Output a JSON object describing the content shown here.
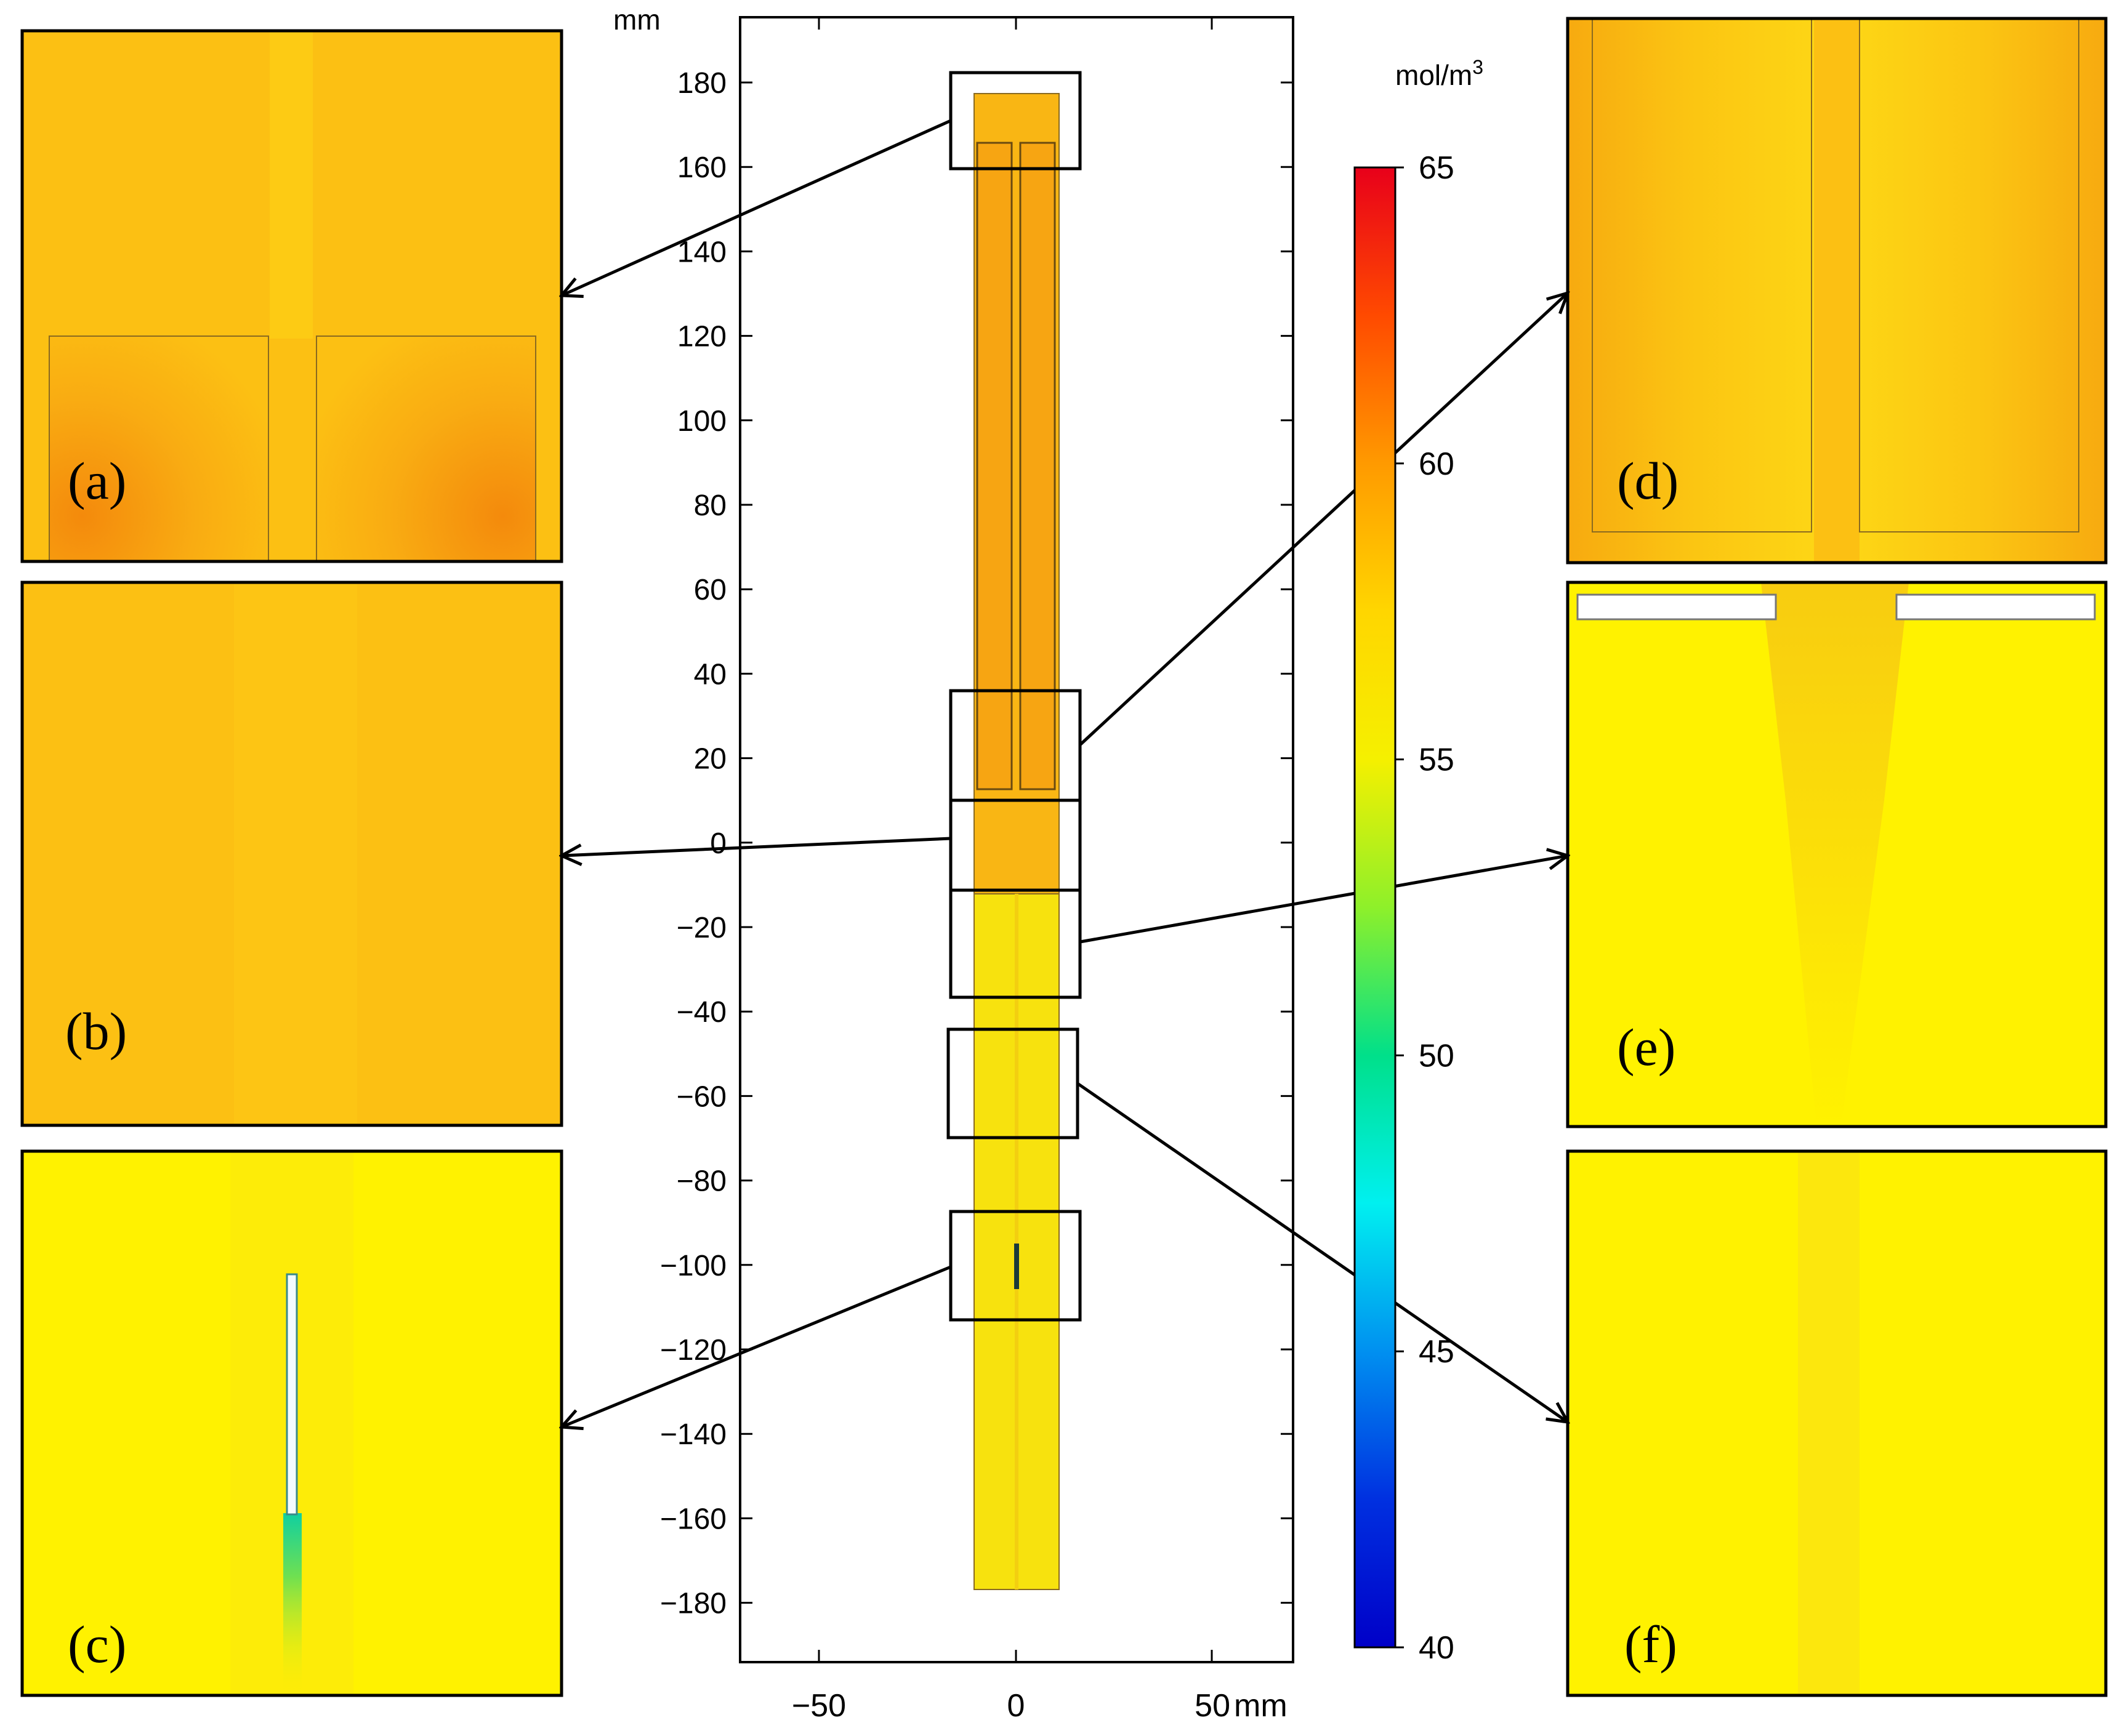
{
  "axis": {
    "y_unit": "mm",
    "x_unit": "mm",
    "y_ticks": [
      "180",
      "160",
      "140",
      "120",
      "100",
      "80",
      "60",
      "40",
      "20",
      "0",
      "−20",
      "−40",
      "−60",
      "−80",
      "−100",
      "−120",
      "−140",
      "−160",
      "−180"
    ],
    "x_ticks": [
      "−50",
      "0",
      "50"
    ]
  },
  "colorbar": {
    "unit_prefix": "mol/m",
    "unit_exponent": "3",
    "ticks": [
      "65",
      "60",
      "55",
      "50",
      "45",
      "40"
    ],
    "colors": [
      "#e8001a",
      "#ff4a00",
      "#ff9a00",
      "#ffd600",
      "#f5f000",
      "#8ef02a",
      "#00e08a",
      "#00f0f0",
      "#0090f0",
      "#0030e0",
      "#0000c8"
    ]
  },
  "panels": {
    "a": "(a)",
    "b": "(b)",
    "c": "(c)",
    "d": "(d)",
    "e": "(e)",
    "f": "(f)"
  },
  "palette": {
    "orange_field": "#fdb90a",
    "yellow_field": "#fff200",
    "hot_orange": "#f58a0a"
  }
}
